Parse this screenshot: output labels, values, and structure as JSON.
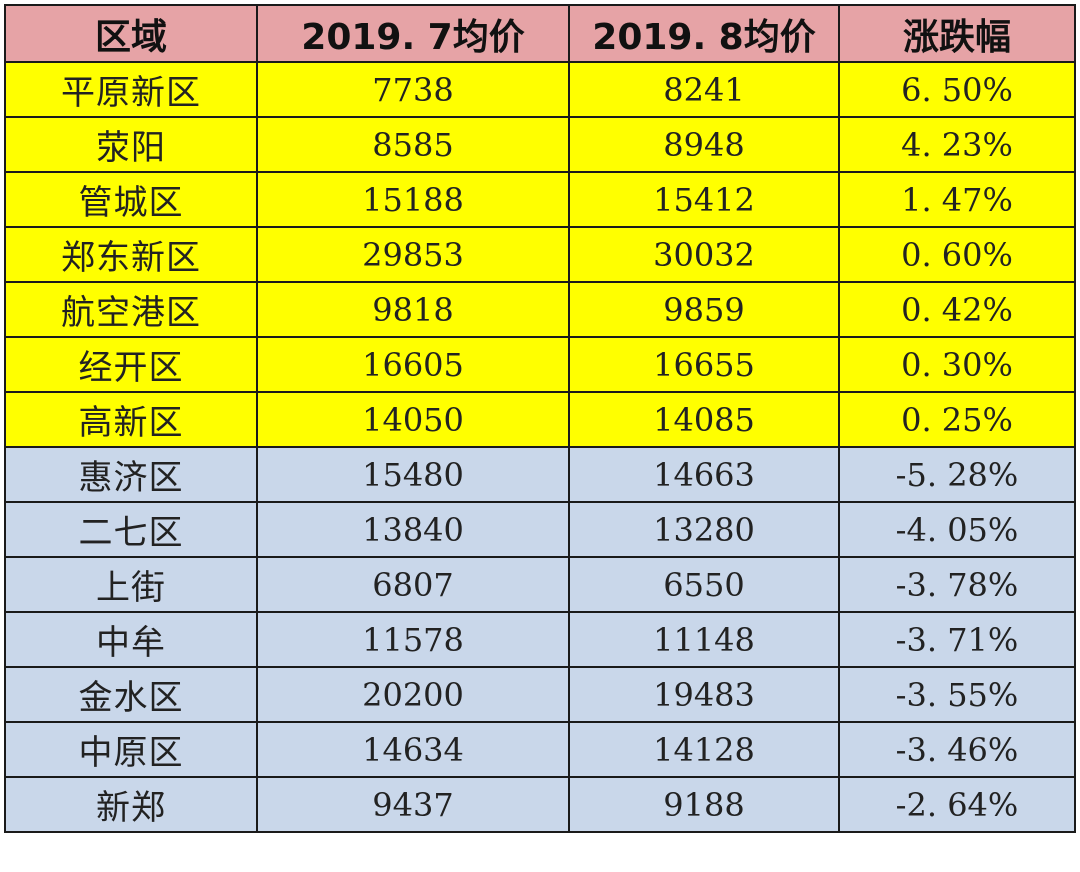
{
  "table": {
    "headers": [
      "区域",
      "2019. 7均价",
      "2019. 8均价",
      "涨跌幅"
    ],
    "rows": [
      {
        "region": "平原新区",
        "jul": "7738",
        "aug": "8241",
        "change": "6. 50%",
        "trend": "up"
      },
      {
        "region": "荥阳",
        "jul": "8585",
        "aug": "8948",
        "change": "4. 23%",
        "trend": "up"
      },
      {
        "region": "管城区",
        "jul": "15188",
        "aug": "15412",
        "change": "1. 47%",
        "trend": "up"
      },
      {
        "region": "郑东新区",
        "jul": "29853",
        "aug": "30032",
        "change": "0. 60%",
        "trend": "up"
      },
      {
        "region": "航空港区",
        "jul": "9818",
        "aug": "9859",
        "change": "0. 42%",
        "trend": "up"
      },
      {
        "region": "经开区",
        "jul": "16605",
        "aug": "16655",
        "change": "0. 30%",
        "trend": "up"
      },
      {
        "region": "高新区",
        "jul": "14050",
        "aug": "14085",
        "change": "0. 25%",
        "trend": "up"
      },
      {
        "region": "惠济区",
        "jul": "15480",
        "aug": "14663",
        "change": "-5. 28%",
        "trend": "down"
      },
      {
        "region": "二七区",
        "jul": "13840",
        "aug": "13280",
        "change": "-4. 05%",
        "trend": "down"
      },
      {
        "region": "上街",
        "jul": "6807",
        "aug": "6550",
        "change": "-3. 78%",
        "trend": "down"
      },
      {
        "region": "中牟",
        "jul": "11578",
        "aug": "11148",
        "change": "-3. 71%",
        "trend": "down"
      },
      {
        "region": "金水区",
        "jul": "20200",
        "aug": "19483",
        "change": "-3. 55%",
        "trend": "down"
      },
      {
        "region": "中原区",
        "jul": "14634",
        "aug": "14128",
        "change": "-3. 46%",
        "trend": "down"
      },
      {
        "region": "新郑",
        "jul": "9437",
        "aug": "9188",
        "change": "-2. 64%",
        "trend": "down"
      }
    ]
  },
  "colors": {
    "header_bg": "#e6a3a6",
    "increase_bg": "#ffff00",
    "decrease_bg": "#c9d7ea"
  }
}
